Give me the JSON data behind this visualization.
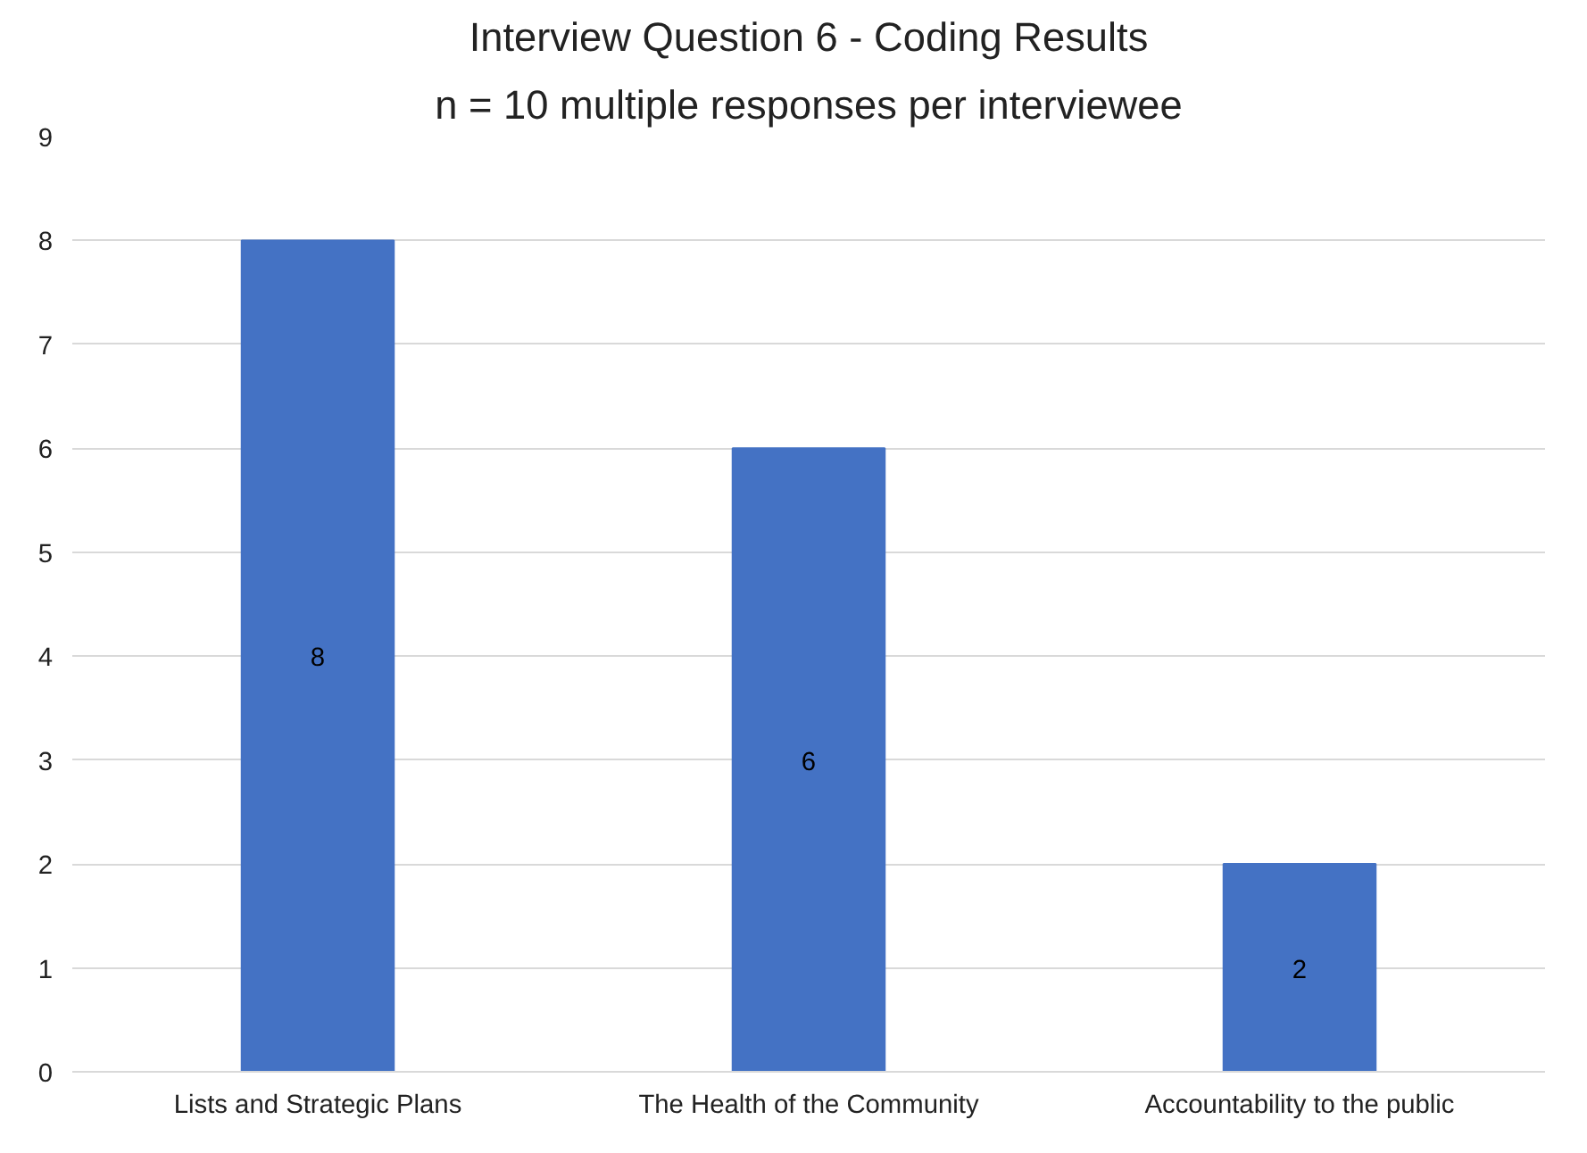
{
  "chart_data": {
    "type": "bar",
    "title": "Interview Question 6 - Coding Results",
    "subtitle": "n = 10 multiple responses per interviewee",
    "categories": [
      "Lists and Strategic Plans",
      "The Health of the Community",
      "Accountability to the public"
    ],
    "values": [
      8,
      6,
      2
    ],
    "color": "#4472c4",
    "ylim": [
      0,
      9
    ],
    "yticks": [
      0,
      1,
      2,
      3,
      4,
      5,
      6,
      7,
      8,
      9
    ],
    "grid": "y",
    "data_labels": true
  }
}
